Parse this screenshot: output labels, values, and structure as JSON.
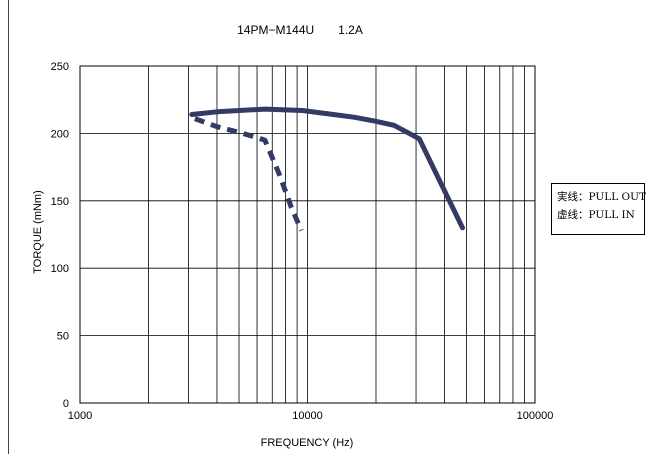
{
  "chart_data": {
    "type": "line",
    "title": "14PM−M144U　　1.2A",
    "xlabel": "FREQUENCY (Hz)",
    "ylabel": "TORQUE (mNm)",
    "x_scale": "log",
    "xlim": [
      1000,
      100000
    ],
    "ylim": [
      0,
      250
    ],
    "x_ticks": [
      1000,
      10000,
      100000
    ],
    "x_tick_labels": [
      "1000",
      "10000",
      "100000"
    ],
    "y_ticks": [
      0,
      50,
      100,
      150,
      200,
      250
    ],
    "y_tick_labels": [
      "0",
      "50",
      "100",
      "150",
      "200",
      "250"
    ],
    "grid": true,
    "legend_position": "right",
    "legend": [
      "実线：PULL OUT",
      "虚线：PULL IN"
    ],
    "series": [
      {
        "style": "solid",
        "color": "#333a66",
        "x": [
          3100,
          4000,
          6500,
          9500,
          13000,
          16000,
          20000,
          24000,
          31000,
          48000
        ],
        "y": [
          214,
          216,
          218,
          217,
          214,
          212,
          209,
          206,
          196,
          130
        ]
      },
      {
        "style": "dashed",
        "color": "#333a66",
        "x": [
          3200,
          4000,
          5200,
          6500,
          7500,
          8500,
          9400
        ],
        "y": [
          211,
          205,
          200,
          195,
          170,
          145,
          128
        ]
      }
    ]
  }
}
